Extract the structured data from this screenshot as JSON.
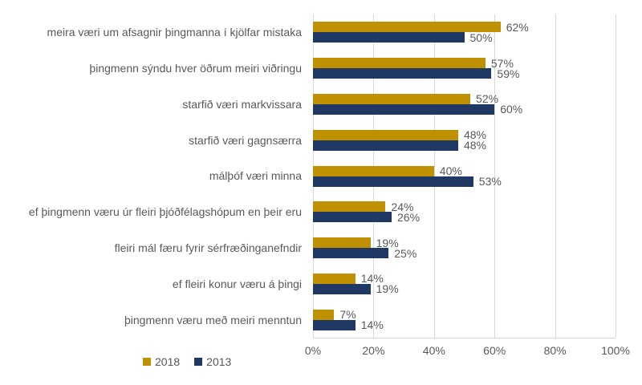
{
  "chart_data": {
    "type": "bar",
    "orientation": "horizontal",
    "title": "",
    "categories": [
      "meira væri um afsagnir þingmanna í kjölfar mistaka",
      "þingmenn sýndu hver öðrum meiri viðringu",
      "starfið væri markvissara",
      "starfið væri gagnsærra",
      "málþóf væri minna",
      "ef þingmenn væru úr fleiri þjóðfélagshópum en þeir eru",
      "fleiri mál færu fyrir sérfræðinganefndir",
      "ef fleiri konur væru á þingi",
      "þingmenn væru með meiri menntun"
    ],
    "series": [
      {
        "name": "2018",
        "color": "#BF9000",
        "values": [
          62,
          57,
          52,
          48,
          40,
          24,
          19,
          14,
          7
        ],
        "labels": [
          "62%",
          "57%",
          "52%",
          "48%",
          "40%",
          "24%",
          "19%",
          "14%",
          "7%"
        ]
      },
      {
        "name": "2013",
        "color": "#1F3864",
        "values": [
          50,
          59,
          60,
          48,
          53,
          26,
          25,
          19,
          14
        ],
        "labels": [
          "50%",
          "59%",
          "60%",
          "48%",
          "53%",
          "26%",
          "25%",
          "19%",
          "14%"
        ]
      }
    ],
    "x_axis": {
      "min": 0,
      "max": 100,
      "tick_labels": [
        "0%",
        "20%",
        "40%",
        "60%",
        "80%",
        "100%"
      ]
    },
    "legend": {
      "position": "bottom",
      "entries": [
        "2018",
        "2013"
      ]
    },
    "grid": true,
    "colors": {
      "background": "#FFFFFF",
      "gridline": "#D9D9D9",
      "text": "#595959"
    }
  }
}
